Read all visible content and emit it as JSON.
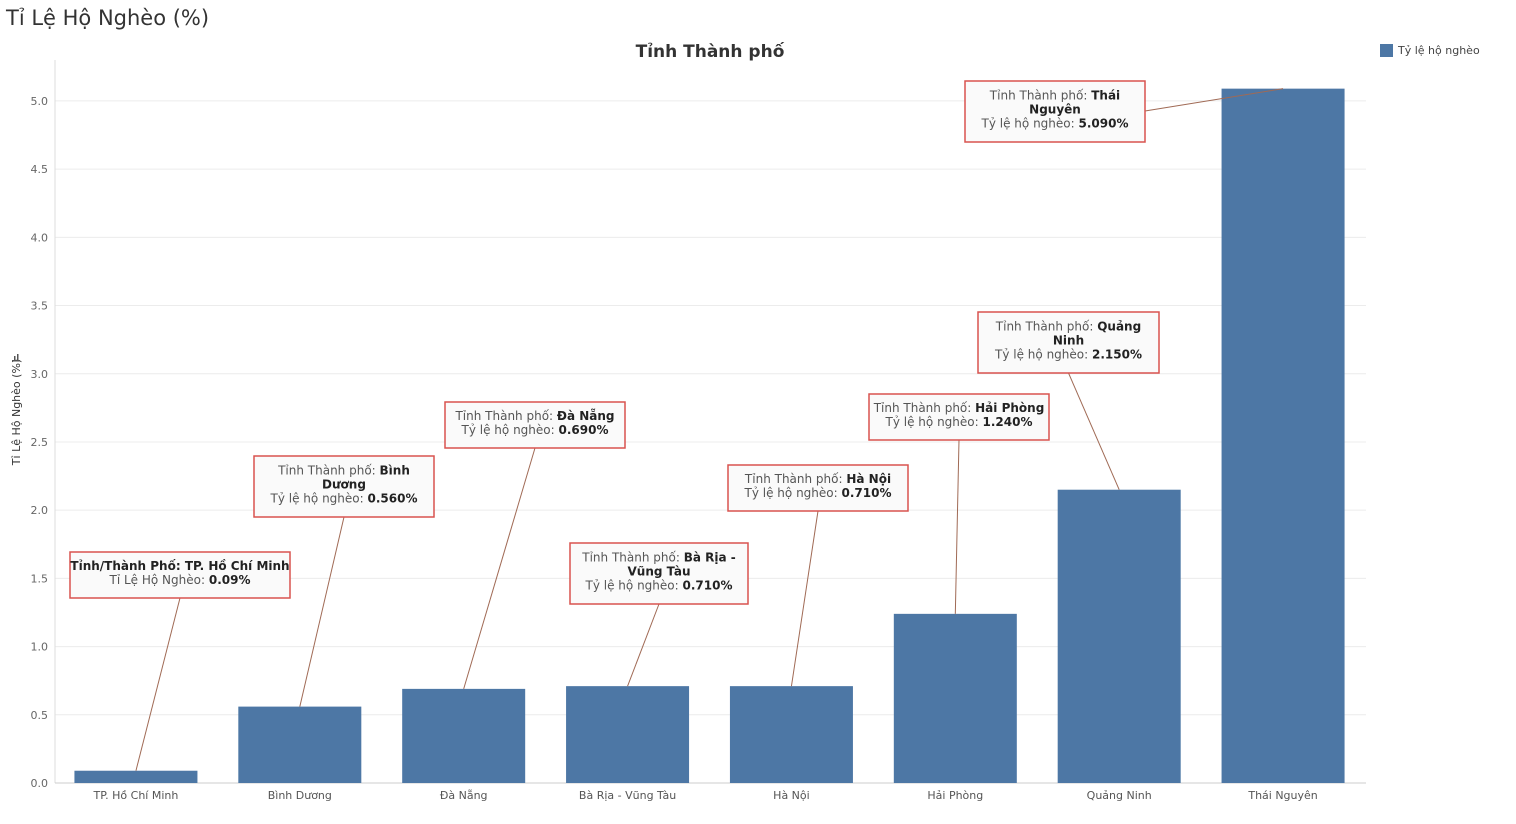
{
  "page": {
    "title": "Tỉ Lệ Hộ Nghèo (%)"
  },
  "chart_data": {
    "type": "bar",
    "title": "Tỉnh Thành phố",
    "xlabel": "",
    "ylabel": "Tỉ Lệ Hộ Nghèo (%)",
    "ylim": [
      0,
      5.3
    ],
    "yticks": [
      0.0,
      0.5,
      1.0,
      1.5,
      2.0,
      2.5,
      3.0,
      3.5,
      4.0,
      4.5,
      5.0
    ],
    "ytick_labels": [
      "0.0",
      "0.5",
      "1.0",
      "1.5",
      "2.0",
      "2.5",
      "3.0",
      "3.5",
      "4.0",
      "4.5",
      "5.0"
    ],
    "grid": true,
    "legend": {
      "position": "top-right",
      "entries": [
        "Tỷ lệ hộ nghèo"
      ]
    },
    "bar_color": "#4d77a5",
    "categories": [
      "TP. Hồ Chí Minh",
      "Bình  Dương",
      "Đà Nẵng",
      "Bà Rịa - Vũng Tàu",
      "Hà Nội",
      "Hải Phòng",
      "Quảng Ninh",
      "Thái  Nguyên"
    ],
    "series": [
      {
        "name": "Tỷ lệ hộ nghèo",
        "values": [
          0.09,
          0.56,
          0.69,
          0.71,
          0.71,
          1.24,
          2.15,
          5.09
        ]
      }
    ],
    "annotation_border_color": "#d9534f",
    "annotations": [
      {
        "lines": [
          [
            [
              "Tỉnh/Thành Phố: ",
              true
            ],
            [
              "TP. Hồ Chí Minh",
              true
            ]
          ],
          [
            [
              "Tỉ Lệ Hộ Nghèo: ",
              false
            ],
            [
              "0.09%",
              true
            ]
          ]
        ]
      },
      {
        "lines": [
          [
            [
              "Tỉnh Thành phố: ",
              false
            ],
            [
              "Bình",
              true
            ]
          ],
          [
            [
              "Dương",
              true
            ]
          ],
          [
            [
              "Tỷ lệ hộ nghèo: ",
              false
            ],
            [
              "0.560%",
              true
            ]
          ]
        ]
      },
      {
        "lines": [
          [
            [
              "Tỉnh Thành phố: ",
              false
            ],
            [
              "Đà Nẵng",
              true
            ]
          ],
          [
            [
              "Tỷ lệ hộ nghèo: ",
              false
            ],
            [
              "0.690%",
              true
            ]
          ]
        ]
      },
      {
        "lines": [
          [
            [
              "Tỉnh Thành phố: ",
              false
            ],
            [
              "Bà Rịa -",
              true
            ]
          ],
          [
            [
              "Vũng Tàu",
              true
            ]
          ],
          [
            [
              "Tỷ lệ hộ nghèo: ",
              false
            ],
            [
              "0.710%",
              true
            ]
          ]
        ]
      },
      {
        "lines": [
          [
            [
              "Tỉnh Thành phố: ",
              false
            ],
            [
              "Hà Nội",
              true
            ]
          ],
          [
            [
              "Tỷ lệ hộ nghèo: ",
              false
            ],
            [
              "0.710%",
              true
            ]
          ]
        ]
      },
      {
        "lines": [
          [
            [
              "Tỉnh Thành phố: ",
              false
            ],
            [
              "Hải Phòng",
              true
            ]
          ],
          [
            [
              "Tỷ lệ hộ nghèo: ",
              false
            ],
            [
              "1.240%",
              true
            ]
          ]
        ]
      },
      {
        "lines": [
          [
            [
              "Tỉnh Thành phố: ",
              false
            ],
            [
              "Quảng",
              true
            ]
          ],
          [
            [
              "Ninh",
              true
            ]
          ],
          [
            [
              "Tỷ lệ hộ nghèo: ",
              false
            ],
            [
              "2.150%",
              true
            ]
          ]
        ]
      },
      {
        "lines": [
          [
            [
              "Tỉnh Thành phố: ",
              false
            ],
            [
              "Thái",
              true
            ]
          ],
          [
            [
              "Nguyên",
              true
            ]
          ],
          [
            [
              "Tỷ lệ hộ nghèo: ",
              false
            ],
            [
              "5.090%",
              true
            ]
          ]
        ]
      }
    ]
  }
}
